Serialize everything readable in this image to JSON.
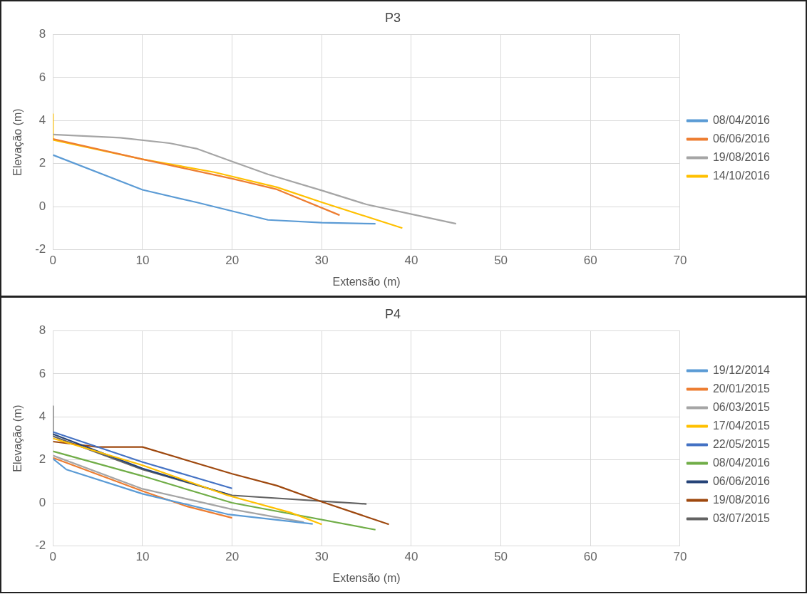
{
  "chart_data": [
    {
      "type": "line",
      "title": "P3",
      "xlabel": "Extensão (m)",
      "ylabel": "Elevação (m)",
      "xlim": [
        0,
        70
      ],
      "xticks": [
        0,
        10,
        20,
        30,
        40,
        50,
        60,
        70
      ],
      "ylim": [
        -2,
        8
      ],
      "yticks": [
        -2,
        0,
        2,
        4,
        6,
        8
      ],
      "grid": true,
      "legend": "right",
      "series": [
        {
          "name": "08/04/2016",
          "color": "#5b9bd5",
          "x": [
            0,
            10,
            16,
            24,
            30,
            36
          ],
          "values": [
            2.4,
            0.78,
            0.2,
            -0.62,
            -0.75,
            -0.8
          ]
        },
        {
          "name": "06/06/2016",
          "color": "#ed7d31",
          "x": [
            0,
            10,
            20,
            25,
            32
          ],
          "values": [
            3.15,
            2.2,
            1.3,
            0.8,
            -0.4
          ]
        },
        {
          "name": "19/08/2016",
          "color": "#a5a5a5",
          "x": [
            0,
            7.5,
            13,
            16,
            20,
            24,
            30,
            35,
            40,
            45
          ],
          "values": [
            3.35,
            3.2,
            2.95,
            2.7,
            2.1,
            1.5,
            0.75,
            0.1,
            -0.35,
            -0.8
          ]
        },
        {
          "name": "14/10/2016",
          "color": "#ffc000",
          "x": [
            0,
            0,
            10,
            18,
            25,
            30,
            39
          ],
          "values": [
            4.3,
            3.1,
            2.2,
            1.6,
            0.9,
            0.2,
            -1.0
          ]
        }
      ]
    },
    {
      "type": "line",
      "title": "P4",
      "xlabel": "Extensão (m)",
      "ylabel": "Elevação (m)",
      "xlim": [
        0,
        70
      ],
      "xticks": [
        0,
        10,
        20,
        30,
        40,
        50,
        60,
        70
      ],
      "ylim": [
        -2,
        8
      ],
      "yticks": [
        -2,
        0,
        2,
        4,
        6,
        8
      ],
      "grid": true,
      "legend": "right",
      "series": [
        {
          "name": "19/12/2014",
          "color": "#5b9bd5",
          "x": [
            0,
            1.5,
            10,
            19.5,
            29
          ],
          "values": [
            2.05,
            1.55,
            0.42,
            -0.53,
            -0.98
          ]
        },
        {
          "name": "20/01/2015",
          "color": "#ed7d31",
          "x": [
            0,
            10,
            15,
            20
          ],
          "values": [
            2.1,
            0.55,
            -0.17,
            -0.7
          ]
        },
        {
          "name": "06/03/2015",
          "color": "#a5a5a5",
          "x": [
            0,
            10,
            20,
            28
          ],
          "values": [
            2.2,
            0.65,
            -0.3,
            -0.9
          ]
        },
        {
          "name": "17/04/2015",
          "color": "#ffc000",
          "x": [
            0,
            10,
            19.5,
            26.5,
            30
          ],
          "values": [
            3.0,
            1.75,
            0.35,
            -0.45,
            -1.0
          ]
        },
        {
          "name": "22/05/2015",
          "color": "#4472c4",
          "x": [
            0,
            10,
            20
          ],
          "values": [
            3.3,
            1.9,
            0.67
          ]
        },
        {
          "name": "08/04/2016",
          "color": "#70ad47",
          "x": [
            0,
            10,
            20,
            36
          ],
          "values": [
            2.4,
            1.25,
            0.0,
            -1.25
          ]
        },
        {
          "name": "06/06/2016",
          "color": "#264478",
          "x": [
            0,
            10,
            19.5
          ],
          "values": [
            3.2,
            1.6,
            0.4
          ]
        },
        {
          "name": "19/08/2016",
          "color": "#9e480e",
          "x": [
            0,
            5,
            10,
            20,
            25,
            30,
            37.5
          ],
          "values": [
            2.85,
            2.6,
            2.6,
            1.35,
            0.8,
            0.05,
            -1.0
          ]
        },
        {
          "name": "03/07/2015",
          "color": "#636363",
          "x": [
            0,
            0,
            10,
            20,
            35
          ],
          "values": [
            4.5,
            3.1,
            1.55,
            0.35,
            -0.05
          ]
        }
      ]
    }
  ]
}
